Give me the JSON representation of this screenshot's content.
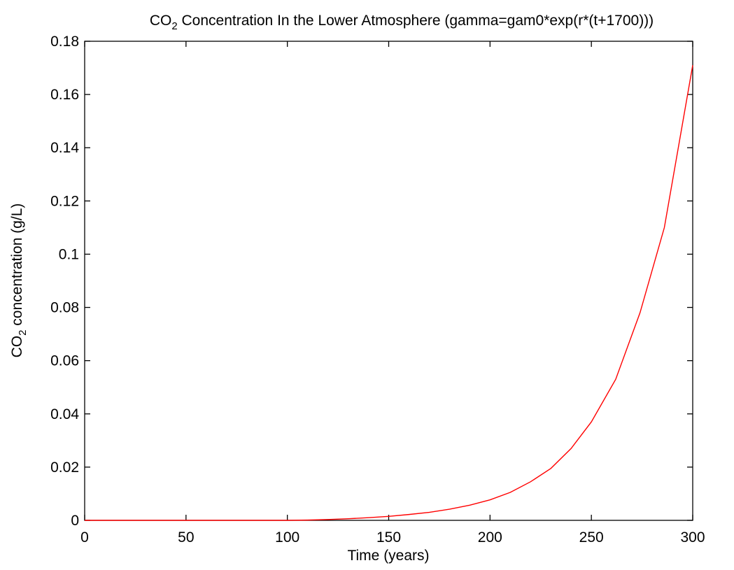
{
  "chart_data": {
    "type": "line",
    "title": {
      "prefix": "CO",
      "subscript": "2",
      "rest": " Concentration In the Lower Atmosphere (gamma=gam0*exp(r*(t+1700)))"
    },
    "xlabel": "Time (years)",
    "ylabel": {
      "prefix": "CO",
      "subscript": "2",
      "rest": " concentration (g/L)"
    },
    "xlim": [
      0,
      300
    ],
    "ylim": [
      0,
      0.18
    ],
    "xticks": [
      0,
      50,
      100,
      150,
      200,
      250,
      300
    ],
    "xtick_labels": [
      "0",
      "50",
      "100",
      "150",
      "200",
      "250",
      "300"
    ],
    "yticks": [
      0,
      0.02,
      0.04,
      0.06,
      0.08,
      0.1,
      0.12,
      0.14,
      0.16,
      0.18
    ],
    "ytick_labels": [
      "0",
      "0.02",
      "0.04",
      "0.06",
      "0.08",
      "0.1",
      "0.12",
      "0.14",
      "0.16",
      "0.18"
    ],
    "grid": false,
    "series": [
      {
        "color": "#ff0000",
        "x": [
          0,
          10,
          20,
          30,
          40,
          50,
          60,
          70,
          80,
          90,
          100,
          110,
          120,
          130,
          140,
          150,
          160,
          170,
          180,
          190,
          200,
          210,
          220,
          230,
          240,
          250,
          262,
          274,
          286,
          300
        ],
        "y": [
          0,
          0,
          0,
          0,
          0,
          0,
          0,
          0,
          0,
          0,
          0,
          0.0001,
          0.0003,
          0.0006,
          0.001,
          0.0015,
          0.0022,
          0.003,
          0.0042,
          0.0057,
          0.0077,
          0.0105,
          0.0145,
          0.0195,
          0.027,
          0.037,
          0.053,
          0.078,
          0.11,
          0.171
        ]
      }
    ]
  }
}
